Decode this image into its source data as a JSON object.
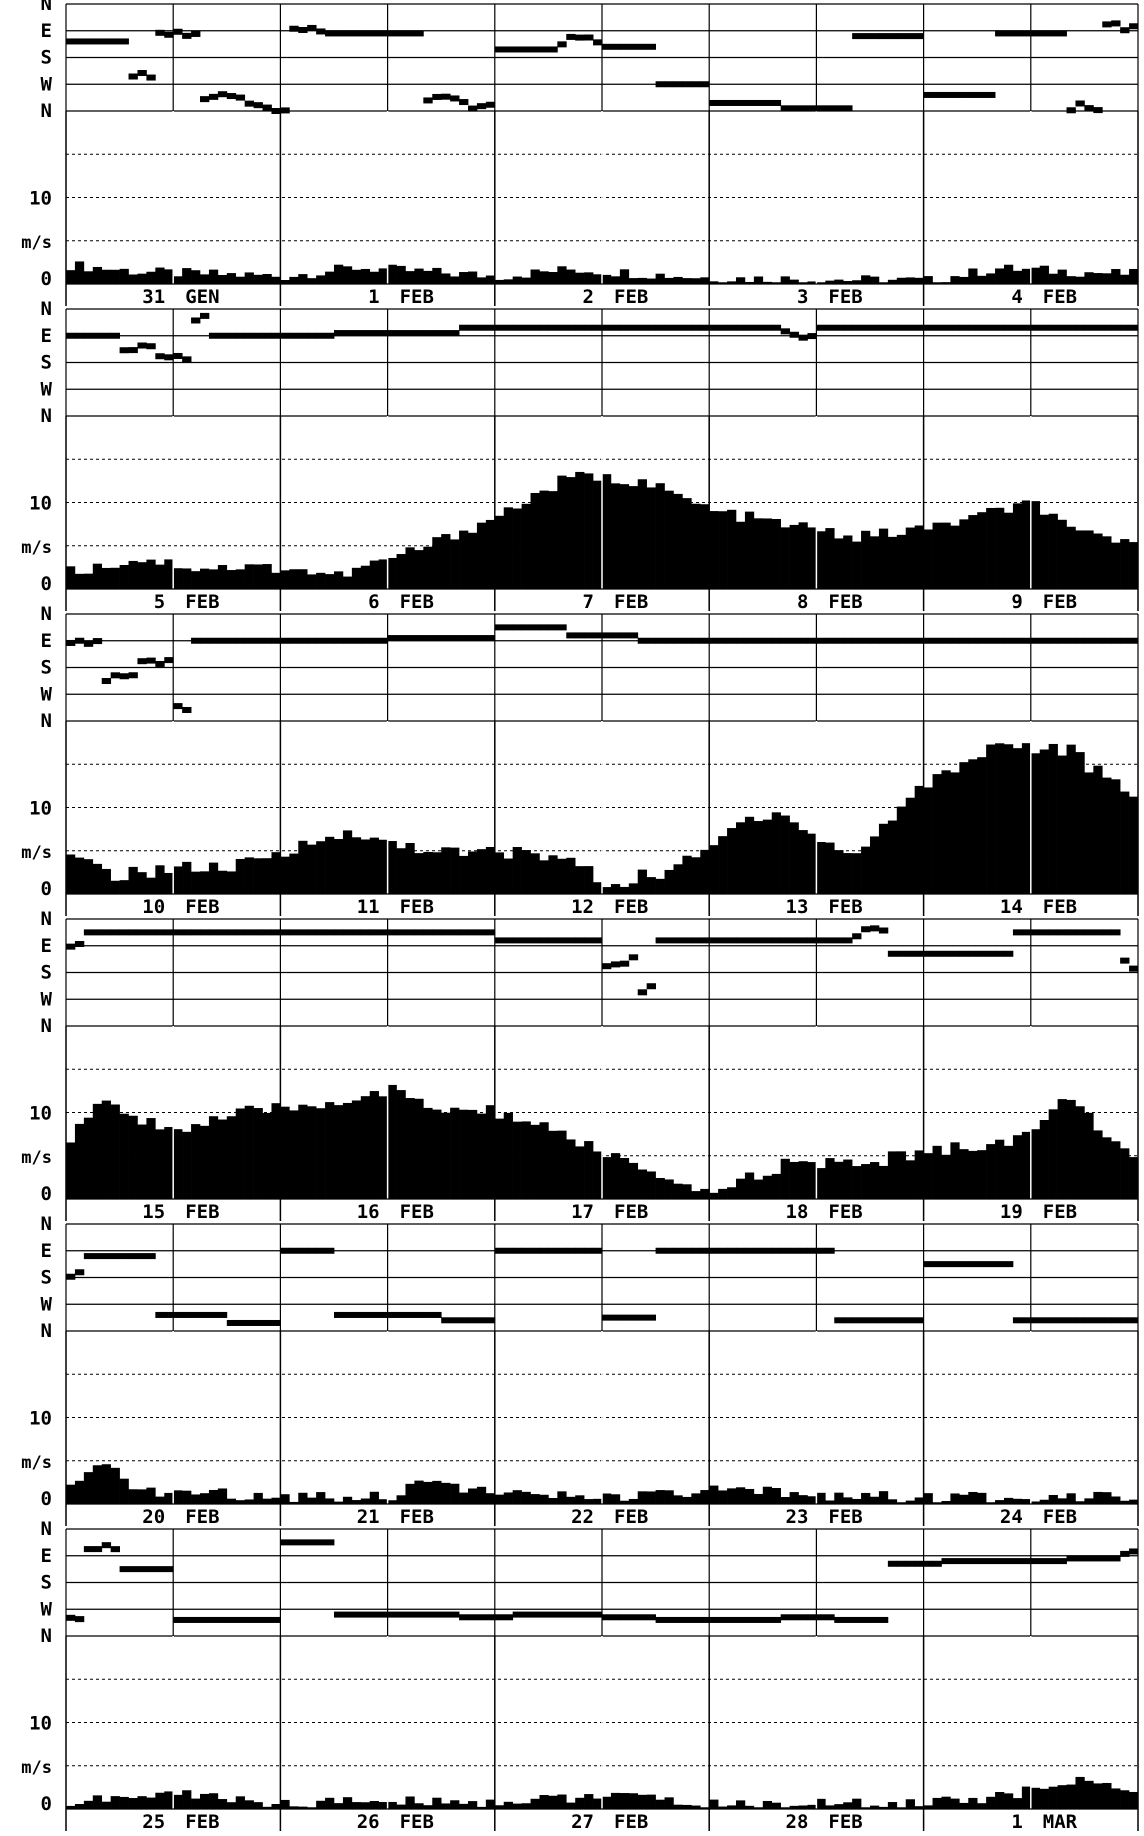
{
  "direction_labels": [
    "N",
    "E",
    "S",
    "W",
    "N"
  ],
  "speed_unit": "m/s",
  "speed_ticks": [
    "10",
    "0"
  ],
  "chart_data": {
    "type": "bar",
    "panels": [
      {
        "days": [
          {
            "day": "31",
            "month": "GEN"
          },
          {
            "day": "1",
            "month": "FEB"
          },
          {
            "day": "2",
            "month": "FEB"
          },
          {
            "day": "3",
            "month": "FEB"
          },
          {
            "day": "4",
            "month": "FEB"
          }
        ],
        "speed_series": {
          "anchors": [
            [
              0,
              2.2
            ],
            [
              8,
              1.4
            ],
            [
              24,
              0.9
            ],
            [
              32,
              1.9
            ],
            [
              48,
              0.9
            ],
            [
              56,
              1.7
            ],
            [
              72,
              0.7
            ],
            [
              96,
              0.4
            ],
            [
              104,
              1.8
            ],
            [
              120,
              1.1
            ]
          ],
          "noise": 0.6
        },
        "direction_segments": [
          {
            "from": 0,
            "to": 7,
            "dir": 1.4
          },
          {
            "from": 7,
            "to": 10,
            "dir": 2.6
          },
          {
            "from": 10,
            "to": 15,
            "dir": 1.1
          },
          {
            "from": 15,
            "to": 20,
            "dir": 3.5
          },
          {
            "from": 20,
            "to": 25,
            "dir": 3.9
          },
          {
            "from": 25,
            "to": 29,
            "dir": 1.0
          },
          {
            "from": 29,
            "to": 40,
            "dir": 1.1
          },
          {
            "from": 40,
            "to": 44,
            "dir": 3.6
          },
          {
            "from": 44,
            "to": 48,
            "dir": 3.8
          },
          {
            "from": 48,
            "to": 55,
            "dir": 1.7
          },
          {
            "from": 55,
            "to": 60,
            "dir": 1.4
          },
          {
            "from": 60,
            "to": 66,
            "dir": 1.6
          },
          {
            "from": 66,
            "to": 72,
            "dir": 3.0
          },
          {
            "from": 72,
            "to": 80,
            "dir": 3.7
          },
          {
            "from": 80,
            "to": 88,
            "dir": 3.9
          },
          {
            "from": 88,
            "to": 96,
            "dir": 1.2
          },
          {
            "from": 96,
            "to": 104,
            "dir": 3.4
          },
          {
            "from": 104,
            "to": 112,
            "dir": 1.1
          },
          {
            "from": 112,
            "to": 116,
            "dir": 3.8
          },
          {
            "from": 116,
            "to": 120,
            "dir": 0.9
          }
        ]
      },
      {
        "days": [
          {
            "day": "5",
            "month": "FEB"
          },
          {
            "day": "6",
            "month": "FEB"
          },
          {
            "day": "7",
            "month": "FEB"
          },
          {
            "day": "8",
            "month": "FEB"
          },
          {
            "day": "9",
            "month": "FEB"
          }
        ],
        "speed_series": {
          "anchors": [
            [
              0,
              2
            ],
            [
              8,
              3.5
            ],
            [
              14,
              2.5
            ],
            [
              24,
              2.5
            ],
            [
              30,
              1.5
            ],
            [
              40,
              5
            ],
            [
              48,
              8.5
            ],
            [
              56,
              13
            ],
            [
              64,
              12.5
            ],
            [
              72,
              9
            ],
            [
              80,
              7.5
            ],
            [
              88,
              6
            ],
            [
              96,
              7
            ],
            [
              104,
              9
            ],
            [
              108,
              10
            ],
            [
              112,
              6.5
            ],
            [
              120,
              5.5
            ]
          ],
          "noise": 0.7
        },
        "direction_segments": [
          {
            "from": 0,
            "to": 6,
            "dir": 1.0
          },
          {
            "from": 6,
            "to": 10,
            "dir": 1.4
          },
          {
            "from": 10,
            "to": 14,
            "dir": 1.9
          },
          {
            "from": 14,
            "to": 16,
            "dir": 0.3
          },
          {
            "from": 16,
            "to": 24,
            "dir": 1.0
          },
          {
            "from": 24,
            "to": 30,
            "dir": 1.0
          },
          {
            "from": 30,
            "to": 44,
            "dir": 0.9
          },
          {
            "from": 44,
            "to": 80,
            "dir": 0.7
          },
          {
            "from": 80,
            "to": 84,
            "dir": 0.9
          },
          {
            "from": 84,
            "to": 120,
            "dir": 0.7
          }
        ]
      },
      {
        "days": [
          {
            "day": "10",
            "month": "FEB"
          },
          {
            "day": "11",
            "month": "FEB"
          },
          {
            "day": "12",
            "month": "FEB"
          },
          {
            "day": "13",
            "month": "FEB"
          },
          {
            "day": "14",
            "month": "FEB"
          }
        ],
        "speed_series": {
          "anchors": [
            [
              0,
              4
            ],
            [
              6,
              2
            ],
            [
              10,
              3
            ],
            [
              18,
              3
            ],
            [
              24,
              4.5
            ],
            [
              28,
              7
            ],
            [
              36,
              6
            ],
            [
              44,
              4.5
            ],
            [
              48,
              5
            ],
            [
              56,
              4
            ],
            [
              60,
              1
            ],
            [
              66,
              2.5
            ],
            [
              70,
              4
            ],
            [
              76,
              9
            ],
            [
              80,
              9.5
            ],
            [
              84,
              6
            ],
            [
              88,
              4.5
            ],
            [
              92,
              9
            ],
            [
              96,
              13
            ],
            [
              104,
              17.5
            ],
            [
              112,
              16.5
            ],
            [
              120,
              10
            ]
          ],
          "noise": 0.9
        },
        "direction_segments": [
          {
            "from": 0,
            "to": 4,
            "dir": 1.1
          },
          {
            "from": 4,
            "to": 8,
            "dir": 2.4
          },
          {
            "from": 8,
            "to": 12,
            "dir": 1.8
          },
          {
            "from": 12,
            "to": 14,
            "dir": 3.5
          },
          {
            "from": 14,
            "to": 20,
            "dir": 1.0
          },
          {
            "from": 20,
            "to": 36,
            "dir": 1.0
          },
          {
            "from": 36,
            "to": 48,
            "dir": 0.9
          },
          {
            "from": 48,
            "to": 56,
            "dir": 0.5
          },
          {
            "from": 56,
            "to": 64,
            "dir": 0.8
          },
          {
            "from": 64,
            "to": 78,
            "dir": 1.0
          },
          {
            "from": 78,
            "to": 120,
            "dir": 1.0
          }
        ]
      },
      {
        "days": [
          {
            "day": "15",
            "month": "FEB"
          },
          {
            "day": "16",
            "month": "FEB"
          },
          {
            "day": "17",
            "month": "FEB"
          },
          {
            "day": "18",
            "month": "FEB"
          },
          {
            "day": "19",
            "month": "FEB"
          }
        ],
        "speed_series": {
          "anchors": [
            [
              0,
              7
            ],
            [
              3,
              11
            ],
            [
              12,
              8
            ],
            [
              20,
              10
            ],
            [
              28,
              11
            ],
            [
              36,
              12.5
            ],
            [
              40,
              10.5
            ],
            [
              48,
              10
            ],
            [
              56,
              7
            ],
            [
              62,
              4.5
            ],
            [
              68,
              1
            ],
            [
              72,
              1
            ],
            [
              80,
              4
            ],
            [
              88,
              4
            ],
            [
              96,
              5.5
            ],
            [
              104,
              6.5
            ],
            [
              108,
              8
            ],
            [
              112,
              12
            ],
            [
              120,
              3
            ]
          ],
          "noise": 0.8
        },
        "direction_segments": [
          {
            "from": 0,
            "to": 2,
            "dir": 1.0
          },
          {
            "from": 2,
            "to": 48,
            "dir": 0.5
          },
          {
            "from": 48,
            "to": 60,
            "dir": 0.8
          },
          {
            "from": 60,
            "to": 64,
            "dir": 1.6
          },
          {
            "from": 64,
            "to": 66,
            "dir": 2.6
          },
          {
            "from": 66,
            "to": 88,
            "dir": 0.8
          },
          {
            "from": 88,
            "to": 92,
            "dir": 0.5
          },
          {
            "from": 92,
            "to": 106,
            "dir": 1.3
          },
          {
            "from": 106,
            "to": 118,
            "dir": 0.5
          },
          {
            "from": 118,
            "to": 120,
            "dir": 1.7
          }
        ]
      },
      {
        "days": [
          {
            "day": "20",
            "month": "FEB"
          },
          {
            "day": "21",
            "month": "FEB"
          },
          {
            "day": "22",
            "month": "FEB"
          },
          {
            "day": "23",
            "month": "FEB"
          },
          {
            "day": "24",
            "month": "FEB"
          }
        ],
        "speed_series": {
          "anchors": [
            [
              0,
              1.8
            ],
            [
              4,
              4.5
            ],
            [
              8,
              1.5
            ],
            [
              24,
              0.9
            ],
            [
              36,
              1
            ],
            [
              40,
              3
            ],
            [
              48,
              1
            ],
            [
              64,
              0.8
            ],
            [
              72,
              1.5
            ],
            [
              88,
              1
            ],
            [
              96,
              0.6
            ],
            [
              120,
              1.1
            ]
          ],
          "noise": 0.7
        },
        "direction_segments": [
          {
            "from": 0,
            "to": 2,
            "dir": 1.8
          },
          {
            "from": 2,
            "to": 10,
            "dir": 1.2
          },
          {
            "from": 10,
            "to": 18,
            "dir": 3.4
          },
          {
            "from": 18,
            "to": 24,
            "dir": 3.7
          },
          {
            "from": 24,
            "to": 30,
            "dir": 1.0
          },
          {
            "from": 30,
            "to": 42,
            "dir": 3.4
          },
          {
            "from": 42,
            "to": 48,
            "dir": 3.6
          },
          {
            "from": 48,
            "to": 60,
            "dir": 1.0
          },
          {
            "from": 60,
            "to": 66,
            "dir": 3.5
          },
          {
            "from": 66,
            "to": 78,
            "dir": 1.0
          },
          {
            "from": 78,
            "to": 86,
            "dir": 1.0
          },
          {
            "from": 86,
            "to": 96,
            "dir": 3.6
          },
          {
            "from": 96,
            "to": 106,
            "dir": 1.5
          },
          {
            "from": 106,
            "to": 120,
            "dir": 3.6
          }
        ]
      },
      {
        "days": [
          {
            "day": "25",
            "month": "FEB"
          },
          {
            "day": "26",
            "month": "FEB"
          },
          {
            "day": "27",
            "month": "FEB"
          },
          {
            "day": "28",
            "month": "FEB"
          },
          {
            "day": "1",
            "month": "MAR"
          }
        ],
        "speed_series": {
          "anchors": [
            [
              0,
              0.8
            ],
            [
              12,
              1.8
            ],
            [
              24,
              0.6
            ],
            [
              36,
              1
            ],
            [
              48,
              0.8
            ],
            [
              60,
              1.6
            ],
            [
              72,
              0.5
            ],
            [
              96,
              0.7
            ],
            [
              104,
              1.4
            ],
            [
              112,
              3
            ],
            [
              116,
              3.5
            ],
            [
              120,
              1
            ]
          ],
          "noise": 0.6
        },
        "direction_segments": [
          {
            "from": 0,
            "to": 2,
            "dir": 3.2
          },
          {
            "from": 2,
            "to": 6,
            "dir": 0.7
          },
          {
            "from": 6,
            "to": 12,
            "dir": 1.5
          },
          {
            "from": 12,
            "to": 24,
            "dir": 3.4
          },
          {
            "from": 24,
            "to": 30,
            "dir": 0.5
          },
          {
            "from": 30,
            "to": 44,
            "dir": 3.2
          },
          {
            "from": 44,
            "to": 50,
            "dir": 3.3
          },
          {
            "from": 50,
            "to": 60,
            "dir": 3.2
          },
          {
            "from": 60,
            "to": 66,
            "dir": 3.3
          },
          {
            "from": 66,
            "to": 80,
            "dir": 3.4
          },
          {
            "from": 80,
            "to": 86,
            "dir": 3.3
          },
          {
            "from": 86,
            "to": 92,
            "dir": 3.4
          },
          {
            "from": 92,
            "to": 98,
            "dir": 1.3
          },
          {
            "from": 98,
            "to": 112,
            "dir": 1.2
          },
          {
            "from": 112,
            "to": 118,
            "dir": 1.1
          },
          {
            "from": 118,
            "to": 120,
            "dir": 0.9
          }
        ]
      }
    ],
    "xlabel": "",
    "ylabel": "m/s",
    "ylim": [
      0,
      20
    ],
    "direction_rows": [
      "N",
      "E",
      "S",
      "W",
      "N"
    ],
    "grid": true
  }
}
